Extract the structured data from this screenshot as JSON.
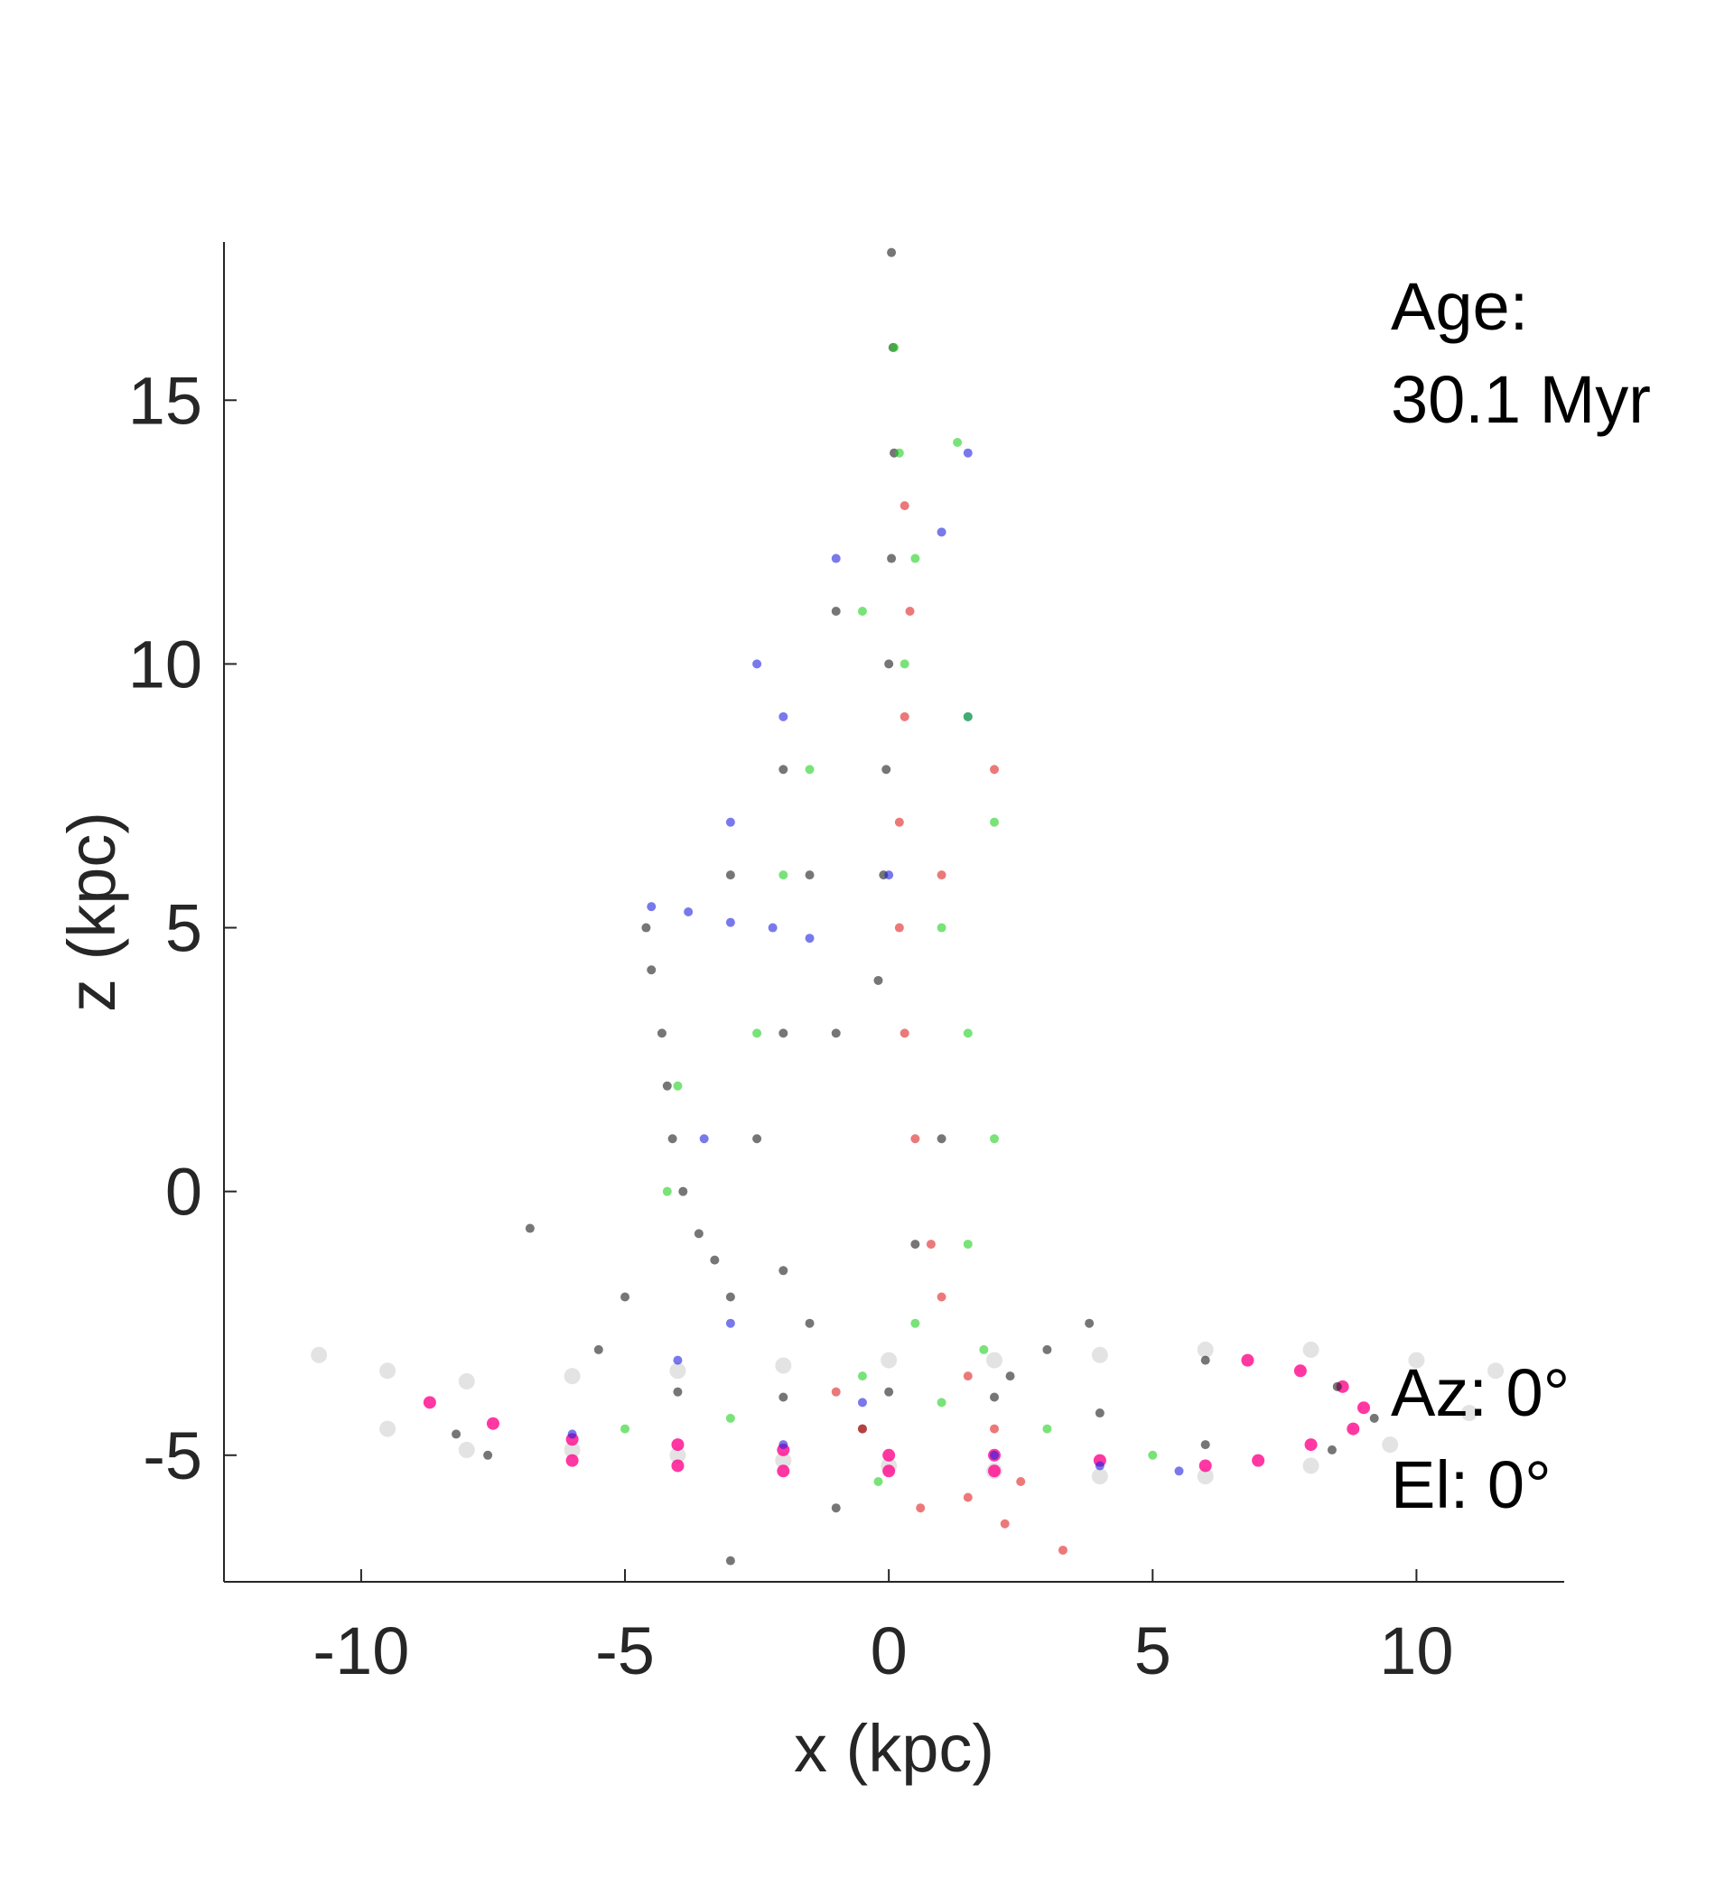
{
  "chart_data": {
    "type": "scatter",
    "title": "",
    "xlabel": "x (kpc)",
    "ylabel": "z (kpc)",
    "xlim": [
      -12.6,
      12.8
    ],
    "ylim": [
      -7.4,
      18.0
    ],
    "xticks": [
      -10,
      -5,
      0,
      5,
      10
    ],
    "yticks": [
      -5,
      0,
      5,
      10,
      15
    ],
    "xtick_labels": [
      "-10",
      "-5",
      "0",
      "5",
      "10"
    ],
    "ytick_labels": [
      "-5",
      "0",
      "5",
      "10",
      "15"
    ],
    "grid": false,
    "legend": "none",
    "annotations": {
      "age_label": "Age:",
      "age_value": "30.1 Myr",
      "azimuth": "Az: 0°",
      "elevation": "El: 0°"
    },
    "colors": {
      "disk": "#c8c8c8",
      "black_stars": "#1a1a1a",
      "blue_stars": "#2020e0",
      "green_stars": "#20d020",
      "red_stars": "#e02020",
      "magenta_ring": "#ff1493"
    },
    "series": [
      {
        "color": "#c8c8c8",
        "description_shape": "disk",
        "points": [
          [
            -10.8,
            -3.1
          ],
          [
            -9.5,
            -3.4
          ],
          [
            -8,
            -3.6
          ],
          [
            -6,
            -3.5
          ],
          [
            -4,
            -3.4
          ],
          [
            -2,
            -3.3
          ],
          [
            0,
            -3.2
          ],
          [
            2,
            -3.2
          ],
          [
            4,
            -3.1
          ],
          [
            6,
            -3.0
          ],
          [
            8,
            -3.0
          ],
          [
            10,
            -3.2
          ],
          [
            11.5,
            -3.4
          ],
          [
            11,
            -4.2
          ],
          [
            9.5,
            -4.8
          ],
          [
            8,
            -5.2
          ],
          [
            6,
            -5.4
          ],
          [
            4,
            -5.4
          ],
          [
            2,
            -5.3
          ],
          [
            0,
            -5.2
          ],
          [
            -2,
            -5.1
          ],
          [
            -4,
            -5.0
          ],
          [
            -6,
            -4.9
          ],
          [
            -8,
            -4.9
          ],
          [
            -9.5,
            -4.5
          ]
        ]
      },
      {
        "color": "#ff1493",
        "description_shape": "ring",
        "points": [
          [
            -8.7,
            -4.0
          ],
          [
            -7.5,
            -4.4
          ],
          [
            -6,
            -4.7
          ],
          [
            -4,
            -4.8
          ],
          [
            -2,
            -4.9
          ],
          [
            0,
            -5.0
          ],
          [
            2,
            -5.0
          ],
          [
            4,
            -5.1
          ],
          [
            6,
            -5.2
          ],
          [
            7,
            -5.1
          ],
          [
            -6,
            -5.1
          ],
          [
            -4,
            -5.2
          ],
          [
            -2,
            -5.3
          ],
          [
            0,
            -5.3
          ],
          [
            2,
            -5.3
          ],
          [
            6.8,
            -3.2
          ],
          [
            7.8,
            -3.4
          ],
          [
            8.6,
            -3.7
          ],
          [
            9.0,
            -4.1
          ],
          [
            8.8,
            -4.5
          ],
          [
            8.0,
            -4.8
          ]
        ]
      },
      {
        "color": "#1a1a1a",
        "description_shape": "stars",
        "points": [
          [
            0.05,
            17.8
          ],
          [
            0.08,
            16.0
          ],
          [
            0.1,
            14.0
          ],
          [
            0.05,
            12.0
          ],
          [
            0.0,
            10.0
          ],
          [
            -0.05,
            8.0
          ],
          [
            -0.1,
            6.0
          ],
          [
            -0.2,
            4.0
          ],
          [
            -4.6,
            5.0
          ],
          [
            -4.5,
            4.2
          ],
          [
            -4.3,
            3.0
          ],
          [
            -4.2,
            2.0
          ],
          [
            -4.1,
            1.0
          ],
          [
            -3.9,
            0.0
          ],
          [
            -3.6,
            -0.8
          ],
          [
            -3.3,
            -1.3
          ],
          [
            -3.0,
            -2.0
          ],
          [
            -2.5,
            1.0
          ],
          [
            -2.0,
            3.0
          ],
          [
            -3.0,
            6.0
          ],
          [
            -2.0,
            8.0
          ],
          [
            -1.0,
            11.0
          ],
          [
            -1.5,
            6.0
          ],
          [
            -1.0,
            3.0
          ],
          [
            -2.0,
            -1.5
          ],
          [
            -1.5,
            -2.5
          ],
          [
            -5.0,
            -2.0
          ],
          [
            -6.8,
            -0.7
          ],
          [
            -5.5,
            -3.0
          ],
          [
            -4,
            -3.8
          ],
          [
            -2,
            -3.9
          ],
          [
            0,
            -3.8
          ],
          [
            2,
            -3.9
          ],
          [
            4,
            -4.2
          ],
          [
            6,
            -4.8
          ],
          [
            -7.6,
            -5.0
          ],
          [
            -8.2,
            -4.6
          ],
          [
            2.3,
            -3.5
          ],
          [
            3.0,
            -3.0
          ],
          [
            3.8,
            -2.5
          ],
          [
            6,
            -3.2
          ],
          [
            8.5,
            -3.7
          ],
          [
            9.2,
            -4.3
          ],
          [
            8.4,
            -4.9
          ],
          [
            0.5,
            -1.0
          ],
          [
            1.0,
            1.0
          ],
          [
            -0.5,
            -4.5
          ],
          [
            -1.0,
            -6.0
          ],
          [
            -3.0,
            -7.0
          ]
        ]
      },
      {
        "color": "#2020e0",
        "description_shape": "stars",
        "points": [
          [
            -4.5,
            5.4
          ],
          [
            -3.8,
            5.3
          ],
          [
            -3.0,
            5.1
          ],
          [
            -2.2,
            5.0
          ],
          [
            -1.5,
            4.8
          ],
          [
            -2.0,
            9.0
          ],
          [
            -1.0,
            12.0
          ],
          [
            1.0,
            12.5
          ],
          [
            1.5,
            14.0
          ],
          [
            -3.0,
            7.0
          ],
          [
            -2.5,
            10.0
          ],
          [
            -4.0,
            -3.2
          ],
          [
            -3.0,
            -2.5
          ],
          [
            0.0,
            6.0
          ],
          [
            -2,
            -4.8
          ],
          [
            2,
            -5.0
          ],
          [
            4,
            -5.2
          ],
          [
            5.5,
            -5.3
          ],
          [
            -6,
            -4.6
          ],
          [
            -0.5,
            -4.0
          ],
          [
            1.5,
            9.0
          ],
          [
            -3.5,
            1.0
          ]
        ]
      },
      {
        "color": "#20d020",
        "description_shape": "stars",
        "points": [
          [
            0.1,
            16.0
          ],
          [
            0.2,
            14.0
          ],
          [
            1.3,
            14.2
          ],
          [
            0.5,
            12.0
          ],
          [
            0.3,
            10.0
          ],
          [
            1.5,
            9.0
          ],
          [
            -0.5,
            11.0
          ],
          [
            2.0,
            7.0
          ],
          [
            1.0,
            5.0
          ],
          [
            1.5,
            3.0
          ],
          [
            2.0,
            1.0
          ],
          [
            1.5,
            -1.0
          ],
          [
            0.5,
            -2.5
          ],
          [
            -0.5,
            -3.5
          ],
          [
            1.0,
            -4.0
          ],
          [
            3.0,
            -4.5
          ],
          [
            5.0,
            -5.0
          ],
          [
            -3.0,
            -4.3
          ],
          [
            -5.0,
            -4.5
          ],
          [
            -4.0,
            2.0
          ],
          [
            -4.2,
            0.0
          ],
          [
            -2.5,
            3.0
          ],
          [
            -2.0,
            6.0
          ],
          [
            -1.5,
            8.0
          ],
          [
            -0.2,
            -5.5
          ],
          [
            1.8,
            -3.0
          ]
        ]
      },
      {
        "color": "#e02020",
        "description_shape": "stars",
        "points": [
          [
            0.3,
            13.0
          ],
          [
            0.4,
            11.0
          ],
          [
            0.3,
            9.0
          ],
          [
            0.2,
            7.0
          ],
          [
            0.2,
            5.0
          ],
          [
            0.3,
            3.0
          ],
          [
            0.5,
            1.0
          ],
          [
            0.8,
            -1.0
          ],
          [
            1.0,
            -2.0
          ],
          [
            1.5,
            -3.5
          ],
          [
            2.0,
            -4.5
          ],
          [
            2.5,
            -5.5
          ],
          [
            2.2,
            -6.3
          ],
          [
            3.3,
            -6.8
          ],
          [
            -0.5,
            -4.5
          ],
          [
            -1.0,
            -3.8
          ],
          [
            1.5,
            -5.8
          ],
          [
            0.6,
            -6.0
          ],
          [
            2.0,
            8.0
          ],
          [
            1.0,
            6.0
          ]
        ]
      }
    ]
  }
}
